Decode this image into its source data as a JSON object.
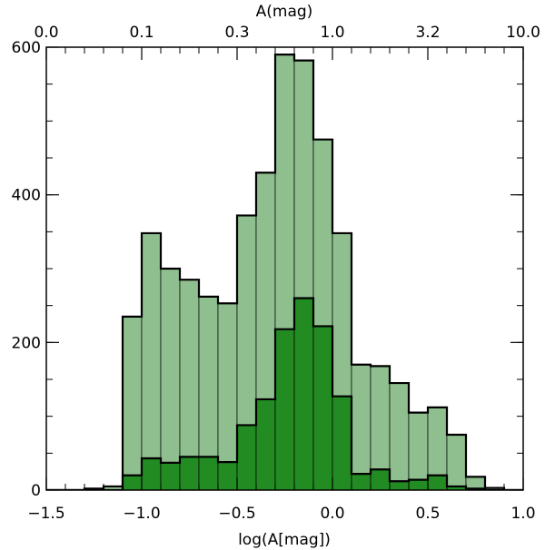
{
  "chart_data": {
    "type": "bar",
    "title": "",
    "xlabel": "log(A[mag])",
    "x2label": "A(mag)",
    "ylabel": "",
    "xlim": [
      -1.5,
      1.0
    ],
    "ylim": [
      0,
      600
    ],
    "grid": false,
    "bin_width": 0.1,
    "bin_left_edges": [
      -1.6,
      -1.5,
      -1.4,
      -1.3,
      -1.2,
      -1.1,
      -1.0,
      -0.9,
      -0.8,
      -0.7,
      -0.6,
      -0.5,
      -0.4,
      -0.3,
      -0.2,
      -0.1,
      0.0,
      0.1,
      0.2,
      0.3,
      0.4,
      0.5,
      0.6,
      0.7,
      0.8,
      0.9
    ],
    "series": [
      {
        "color": "#8fbf8f",
        "values": [
          0,
          0,
          0,
          2,
          5,
          235,
          348,
          300,
          285,
          262,
          253,
          372,
          430,
          590,
          582,
          475,
          348,
          170,
          168,
          145,
          105,
          112,
          75,
          18,
          3,
          0
        ]
      },
      {
        "color": "#228b22",
        "values": [
          0,
          0,
          0,
          0,
          0,
          20,
          43,
          37,
          45,
          45,
          38,
          88,
          123,
          218,
          260,
          222,
          127,
          22,
          28,
          12,
          14,
          20,
          5,
          2,
          0,
          0
        ]
      }
    ],
    "x_ticks": [
      {
        "value": -1.5,
        "label": "−1.5"
      },
      {
        "value": -1.0,
        "label": "−1.0"
      },
      {
        "value": -0.5,
        "label": "−0.5"
      },
      {
        "value": 0.0,
        "label": "0.0"
      },
      {
        "value": 0.5,
        "label": "0.5"
      },
      {
        "value": 1.0,
        "label": "1.0"
      }
    ],
    "x2_ticks": [
      {
        "value": 0.0,
        "label": "0.0"
      },
      {
        "value": 0.1,
        "label": "0.1"
      },
      {
        "value": 0.3,
        "label": "0.3"
      },
      {
        "value": 1.0,
        "label": "1.0"
      },
      {
        "value": 3.2,
        "label": "3.2"
      },
      {
        "value": 10.0,
        "label": "10.0"
      }
    ],
    "y_ticks": [
      {
        "value": 0,
        "label": "0"
      },
      {
        "value": 200,
        "label": "200"
      },
      {
        "value": 400,
        "label": "400"
      },
      {
        "value": 600,
        "label": "600"
      }
    ]
  }
}
